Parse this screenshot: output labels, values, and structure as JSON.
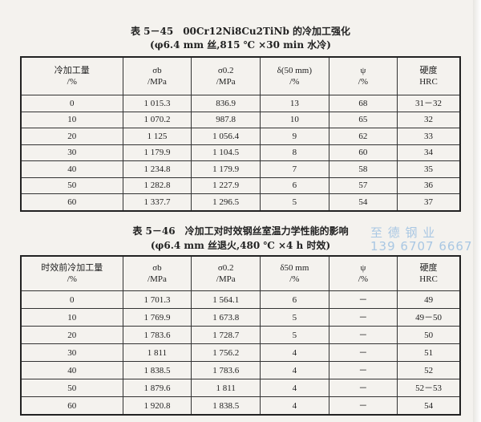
{
  "table1": {
    "title": "表 5－45　00Cr12Ni8Cu2TiNb 的冷加工强化",
    "subtitle": "(φ6.4 mm 丝,815 ℃ ×30 min 水冷)",
    "headers": [
      [
        "冷加工量",
        "/%"
      ],
      [
        "σb",
        "/MPa"
      ],
      [
        "σ0.2",
        "/MPa"
      ],
      [
        "δ(50 mm)",
        "/%"
      ],
      [
        "ψ",
        "/%"
      ],
      [
        "硬度",
        "HRC"
      ]
    ],
    "rows": [
      [
        "0",
        "1 015.3",
        "836.9",
        "13",
        "68",
        "31－32"
      ],
      [
        "10",
        "1 070.2",
        "987.8",
        "10",
        "65",
        "32"
      ],
      [
        "20",
        "1 125",
        "1 056.4",
        "9",
        "62",
        "33"
      ],
      [
        "30",
        "1 179.9",
        "1 104.5",
        "8",
        "60",
        "34"
      ],
      [
        "40",
        "1 234.8",
        "1 179.9",
        "7",
        "58",
        "35"
      ],
      [
        "50",
        "1 282.8",
        "1 227.9",
        "6",
        "57",
        "36"
      ],
      [
        "60",
        "1 337.7",
        "1 296.5",
        "5",
        "54",
        "37"
      ]
    ]
  },
  "table2": {
    "title": "表 5－46　冷加工对时效钢丝室温力学性能的影响",
    "subtitle": "(φ6.4 mm 丝退火,480 ℃ ×4 h 时效)",
    "headers": [
      [
        "时效前冷加工量",
        "/%"
      ],
      [
        "σb",
        "/MPa"
      ],
      [
        "σ0.2",
        "/MPa"
      ],
      [
        "δ50 mm",
        "/%"
      ],
      [
        "ψ",
        "/%"
      ],
      [
        "硬度",
        "HRC"
      ]
    ],
    "rows": [
      [
        "0",
        "1 701.3",
        "1 564.1",
        "6",
        "－",
        "49"
      ],
      [
        "10",
        "1 769.9",
        "1 673.8",
        "5",
        "－",
        "49－50"
      ],
      [
        "20",
        "1 783.6",
        "1 728.7",
        "5",
        "－",
        "50"
      ],
      [
        "30",
        "1 811",
        "1 756.2",
        "4",
        "－",
        "51"
      ],
      [
        "40",
        "1 838.5",
        "1 783.6",
        "4",
        "－",
        "52"
      ],
      [
        "50",
        "1 879.6",
        "1 811",
        "4",
        "－",
        "52－53"
      ],
      [
        "60",
        "1 920.8",
        "1 838.5",
        "4",
        "－",
        "54"
      ]
    ]
  },
  "watermark": {
    "line1": "至 德 钢 业",
    "line2": "139 6707 6667"
  }
}
